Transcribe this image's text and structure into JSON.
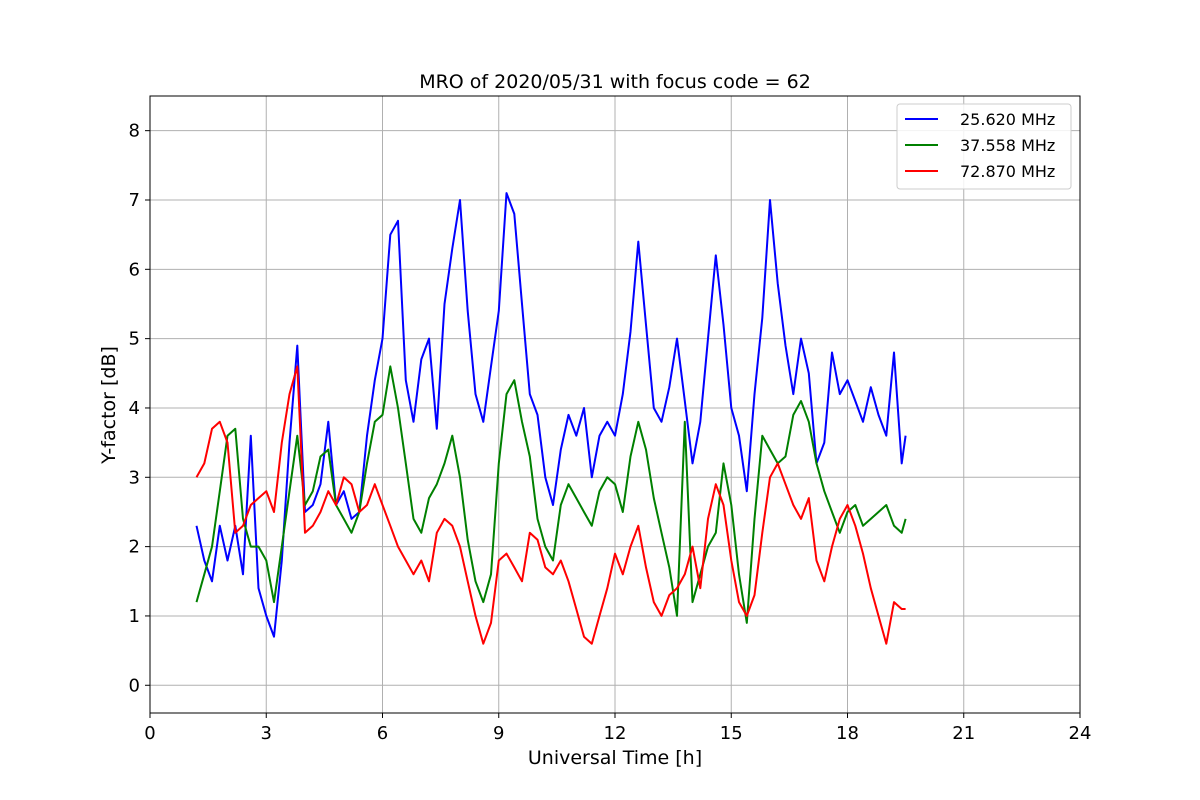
{
  "chart_data": {
    "type": "line",
    "title": "MRO of 2020/05/31 with focus code = 62",
    "xlabel": "Universal Time [h]",
    "ylabel": "Y-factor [dB]",
    "xlim": [
      0,
      24
    ],
    "ylim": [
      -0.4,
      8.5
    ],
    "xticks": [
      0,
      3,
      6,
      9,
      12,
      15,
      18,
      21,
      24
    ],
    "yticks": [
      0,
      1,
      2,
      3,
      4,
      5,
      6,
      7,
      8
    ],
    "grid": true,
    "legend_position": "top-right",
    "series": [
      {
        "name": "25.620 MHz",
        "color": "#0000ff",
        "points": [
          [
            1.2,
            2.3
          ],
          [
            1.4,
            1.8
          ],
          [
            1.6,
            1.5
          ],
          [
            1.8,
            2.3
          ],
          [
            2.0,
            1.8
          ],
          [
            2.2,
            2.3
          ],
          [
            2.4,
            1.6
          ],
          [
            2.6,
            3.6
          ],
          [
            2.8,
            1.4
          ],
          [
            3.0,
            1.0
          ],
          [
            3.2,
            0.7
          ],
          [
            3.4,
            1.8
          ],
          [
            3.6,
            3.5
          ],
          [
            3.8,
            4.9
          ],
          [
            4.0,
            2.5
          ],
          [
            4.2,
            2.6
          ],
          [
            4.4,
            2.9
          ],
          [
            4.6,
            3.8
          ],
          [
            4.8,
            2.6
          ],
          [
            5.0,
            2.8
          ],
          [
            5.2,
            2.4
          ],
          [
            5.4,
            2.5
          ],
          [
            5.6,
            3.6
          ],
          [
            5.8,
            4.4
          ],
          [
            6.0,
            5.0
          ],
          [
            6.2,
            6.5
          ],
          [
            6.4,
            6.7
          ],
          [
            6.6,
            4.4
          ],
          [
            6.8,
            3.8
          ],
          [
            7.0,
            4.7
          ],
          [
            7.2,
            5.0
          ],
          [
            7.4,
            3.7
          ],
          [
            7.6,
            5.5
          ],
          [
            7.8,
            6.3
          ],
          [
            8.0,
            7.0
          ],
          [
            8.2,
            5.4
          ],
          [
            8.4,
            4.2
          ],
          [
            8.6,
            3.8
          ],
          [
            8.8,
            4.6
          ],
          [
            9.0,
            5.4
          ],
          [
            9.2,
            7.1
          ],
          [
            9.4,
            6.8
          ],
          [
            9.6,
            5.5
          ],
          [
            9.8,
            4.2
          ],
          [
            10.0,
            3.9
          ],
          [
            10.2,
            3.0
          ],
          [
            10.4,
            2.6
          ],
          [
            10.6,
            3.4
          ],
          [
            10.8,
            3.9
          ],
          [
            11.0,
            3.6
          ],
          [
            11.2,
            4.0
          ],
          [
            11.4,
            3.0
          ],
          [
            11.6,
            3.6
          ],
          [
            11.8,
            3.8
          ],
          [
            12.0,
            3.6
          ],
          [
            12.2,
            4.2
          ],
          [
            12.4,
            5.1
          ],
          [
            12.6,
            6.4
          ],
          [
            12.8,
            5.2
          ],
          [
            13.0,
            4.0
          ],
          [
            13.2,
            3.8
          ],
          [
            13.4,
            4.3
          ],
          [
            13.6,
            5.0
          ],
          [
            13.8,
            4.1
          ],
          [
            14.0,
            3.2
          ],
          [
            14.2,
            3.8
          ],
          [
            14.4,
            5.0
          ],
          [
            14.6,
            6.2
          ],
          [
            14.8,
            5.2
          ],
          [
            15.0,
            4.0
          ],
          [
            15.2,
            3.6
          ],
          [
            15.4,
            2.8
          ],
          [
            15.6,
            4.2
          ],
          [
            15.8,
            5.3
          ],
          [
            16.0,
            7.0
          ],
          [
            16.2,
            5.8
          ],
          [
            16.4,
            4.9
          ],
          [
            16.6,
            4.2
          ],
          [
            16.8,
            5.0
          ],
          [
            17.0,
            4.5
          ],
          [
            17.2,
            3.2
          ],
          [
            17.4,
            3.5
          ],
          [
            17.6,
            4.8
          ],
          [
            17.8,
            4.2
          ],
          [
            18.0,
            4.4
          ],
          [
            18.2,
            4.1
          ],
          [
            18.4,
            3.8
          ],
          [
            18.6,
            4.3
          ],
          [
            18.8,
            3.9
          ],
          [
            19.0,
            3.6
          ],
          [
            19.2,
            4.8
          ],
          [
            19.4,
            3.2
          ],
          [
            19.5,
            3.6
          ]
        ]
      },
      {
        "name": "37.558 MHz",
        "color": "#008000",
        "points": [
          [
            1.2,
            1.2
          ],
          [
            1.4,
            1.6
          ],
          [
            1.6,
            2.0
          ],
          [
            1.8,
            2.8
          ],
          [
            2.0,
            3.6
          ],
          [
            2.2,
            3.7
          ],
          [
            2.4,
            2.4
          ],
          [
            2.6,
            2.0
          ],
          [
            2.8,
            2.0
          ],
          [
            3.0,
            1.8
          ],
          [
            3.2,
            1.2
          ],
          [
            3.4,
            2.0
          ],
          [
            3.6,
            2.8
          ],
          [
            3.8,
            3.6
          ],
          [
            4.0,
            2.6
          ],
          [
            4.2,
            2.8
          ],
          [
            4.4,
            3.3
          ],
          [
            4.6,
            3.4
          ],
          [
            4.8,
            2.6
          ],
          [
            5.0,
            2.4
          ],
          [
            5.2,
            2.2
          ],
          [
            5.4,
            2.5
          ],
          [
            5.6,
            3.2
          ],
          [
            5.8,
            3.8
          ],
          [
            6.0,
            3.9
          ],
          [
            6.2,
            4.6
          ],
          [
            6.4,
            4.0
          ],
          [
            6.6,
            3.2
          ],
          [
            6.8,
            2.4
          ],
          [
            7.0,
            2.2
          ],
          [
            7.2,
            2.7
          ],
          [
            7.4,
            2.9
          ],
          [
            7.6,
            3.2
          ],
          [
            7.8,
            3.6
          ],
          [
            8.0,
            3.0
          ],
          [
            8.2,
            2.1
          ],
          [
            8.4,
            1.5
          ],
          [
            8.6,
            1.2
          ],
          [
            8.8,
            1.6
          ],
          [
            9.0,
            3.2
          ],
          [
            9.2,
            4.2
          ],
          [
            9.4,
            4.4
          ],
          [
            9.6,
            3.8
          ],
          [
            9.8,
            3.3
          ],
          [
            10.0,
            2.4
          ],
          [
            10.2,
            2.0
          ],
          [
            10.4,
            1.8
          ],
          [
            10.6,
            2.6
          ],
          [
            10.8,
            2.9
          ],
          [
            11.0,
            2.7
          ],
          [
            11.2,
            2.5
          ],
          [
            11.4,
            2.3
          ],
          [
            11.6,
            2.8
          ],
          [
            11.8,
            3.0
          ],
          [
            12.0,
            2.9
          ],
          [
            12.2,
            2.5
          ],
          [
            12.4,
            3.3
          ],
          [
            12.6,
            3.8
          ],
          [
            12.8,
            3.4
          ],
          [
            13.0,
            2.7
          ],
          [
            13.2,
            2.2
          ],
          [
            13.4,
            1.7
          ],
          [
            13.6,
            1.0
          ],
          [
            13.8,
            3.8
          ],
          [
            14.0,
            1.2
          ],
          [
            14.2,
            1.6
          ],
          [
            14.4,
            2.0
          ],
          [
            14.6,
            2.2
          ],
          [
            14.8,
            3.2
          ],
          [
            15.0,
            2.6
          ],
          [
            15.2,
            1.6
          ],
          [
            15.4,
            0.9
          ],
          [
            15.6,
            2.4
          ],
          [
            15.8,
            3.6
          ],
          [
            16.0,
            3.4
          ],
          [
            16.2,
            3.2
          ],
          [
            16.4,
            3.3
          ],
          [
            16.6,
            3.9
          ],
          [
            16.8,
            4.1
          ],
          [
            17.0,
            3.8
          ],
          [
            17.2,
            3.2
          ],
          [
            17.4,
            2.8
          ],
          [
            17.6,
            2.5
          ],
          [
            17.8,
            2.2
          ],
          [
            18.0,
            2.5
          ],
          [
            18.2,
            2.6
          ],
          [
            18.4,
            2.3
          ],
          [
            18.6,
            2.4
          ],
          [
            18.8,
            2.5
          ],
          [
            19.0,
            2.6
          ],
          [
            19.2,
            2.3
          ],
          [
            19.4,
            2.2
          ],
          [
            19.5,
            2.4
          ]
        ]
      },
      {
        "name": "72.870 MHz",
        "color": "#ff0000",
        "points": [
          [
            1.2,
            3.0
          ],
          [
            1.4,
            3.2
          ],
          [
            1.6,
            3.7
          ],
          [
            1.8,
            3.8
          ],
          [
            2.0,
            3.5
          ],
          [
            2.2,
            2.2
          ],
          [
            2.4,
            2.3
          ],
          [
            2.6,
            2.6
          ],
          [
            2.8,
            2.7
          ],
          [
            3.0,
            2.8
          ],
          [
            3.2,
            2.5
          ],
          [
            3.4,
            3.5
          ],
          [
            3.6,
            4.2
          ],
          [
            3.8,
            4.6
          ],
          [
            4.0,
            2.2
          ],
          [
            4.2,
            2.3
          ],
          [
            4.4,
            2.5
          ],
          [
            4.6,
            2.8
          ],
          [
            4.8,
            2.6
          ],
          [
            5.0,
            3.0
          ],
          [
            5.2,
            2.9
          ],
          [
            5.4,
            2.5
          ],
          [
            5.6,
            2.6
          ],
          [
            5.8,
            2.9
          ],
          [
            6.0,
            2.6
          ],
          [
            6.2,
            2.3
          ],
          [
            6.4,
            2.0
          ],
          [
            6.6,
            1.8
          ],
          [
            6.8,
            1.6
          ],
          [
            7.0,
            1.8
          ],
          [
            7.2,
            1.5
          ],
          [
            7.4,
            2.2
          ],
          [
            7.6,
            2.4
          ],
          [
            7.8,
            2.3
          ],
          [
            8.0,
            2.0
          ],
          [
            8.2,
            1.5
          ],
          [
            8.4,
            1.0
          ],
          [
            8.6,
            0.6
          ],
          [
            8.8,
            0.9
          ],
          [
            9.0,
            1.8
          ],
          [
            9.2,
            1.9
          ],
          [
            9.4,
            1.7
          ],
          [
            9.6,
            1.5
          ],
          [
            9.8,
            2.2
          ],
          [
            10.0,
            2.1
          ],
          [
            10.2,
            1.7
          ],
          [
            10.4,
            1.6
          ],
          [
            10.6,
            1.8
          ],
          [
            10.8,
            1.5
          ],
          [
            11.0,
            1.1
          ],
          [
            11.2,
            0.7
          ],
          [
            11.4,
            0.6
          ],
          [
            11.6,
            1.0
          ],
          [
            11.8,
            1.4
          ],
          [
            12.0,
            1.9
          ],
          [
            12.2,
            1.6
          ],
          [
            12.4,
            2.0
          ],
          [
            12.6,
            2.3
          ],
          [
            12.8,
            1.7
          ],
          [
            13.0,
            1.2
          ],
          [
            13.2,
            1.0
          ],
          [
            13.4,
            1.3
          ],
          [
            13.6,
            1.4
          ],
          [
            13.8,
            1.6
          ],
          [
            14.0,
            2.0
          ],
          [
            14.2,
            1.4
          ],
          [
            14.4,
            2.4
          ],
          [
            14.6,
            2.9
          ],
          [
            14.8,
            2.6
          ],
          [
            15.0,
            1.8
          ],
          [
            15.2,
            1.2
          ],
          [
            15.4,
            1.0
          ],
          [
            15.6,
            1.3
          ],
          [
            15.8,
            2.2
          ],
          [
            16.0,
            3.0
          ],
          [
            16.2,
            3.2
          ],
          [
            16.4,
            2.9
          ],
          [
            16.6,
            2.6
          ],
          [
            16.8,
            2.4
          ],
          [
            17.0,
            2.7
          ],
          [
            17.2,
            1.8
          ],
          [
            17.4,
            1.5
          ],
          [
            17.6,
            2.0
          ],
          [
            17.8,
            2.4
          ],
          [
            18.0,
            2.6
          ],
          [
            18.2,
            2.3
          ],
          [
            18.4,
            1.9
          ],
          [
            18.6,
            1.4
          ],
          [
            18.8,
            1.0
          ],
          [
            19.0,
            0.6
          ],
          [
            19.2,
            1.2
          ],
          [
            19.4,
            1.1
          ],
          [
            19.5,
            1.1
          ]
        ]
      }
    ]
  }
}
